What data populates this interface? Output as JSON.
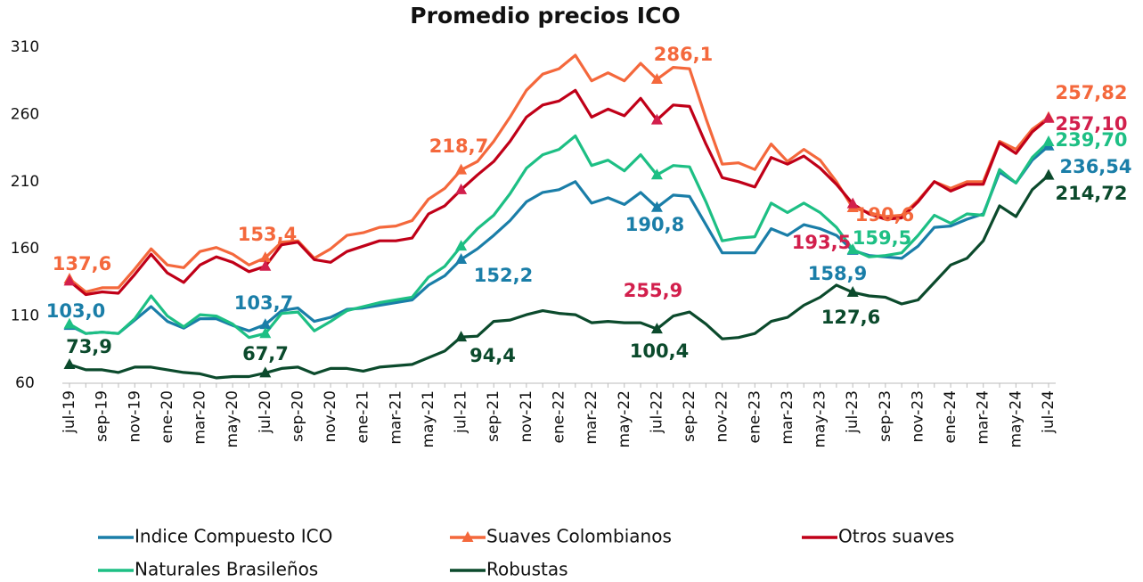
{
  "chart_data": {
    "type": "line",
    "title": "Promedio precios ICO",
    "categories": [
      "jul-19",
      null,
      "sep-19",
      null,
      "nov-19",
      null,
      "ene-20",
      null,
      "mar-20",
      null,
      "may-20",
      null,
      "jul-20",
      null,
      "sep-20",
      null,
      "nov-20",
      null,
      "ene-21",
      null,
      "mar-21",
      null,
      "may-21",
      null,
      "jul-21",
      null,
      "sep-21",
      null,
      "nov-21",
      null,
      "ene-22",
      null,
      "mar-22",
      null,
      "may-22",
      null,
      "jul-22",
      null,
      "sep-22",
      null,
      "nov-22",
      null,
      "ene-23",
      null,
      "mar-23",
      null,
      "may-23",
      null,
      "jul-23",
      null,
      "sep-23",
      null,
      "nov-23",
      null,
      "ene-24",
      null,
      "mar-24",
      null,
      "may-24",
      null,
      "jul-24"
    ],
    "ylim": [
      60,
      310
    ],
    "yticks": [
      60,
      110,
      160,
      210,
      260,
      310
    ],
    "grid": false,
    "legend": "bottom",
    "series": [
      {
        "name": "Indice Compuesto ICO",
        "color": "#1a7ea8",
        "values": [
          103.0,
          97,
          98,
          97,
          107,
          117,
          106,
          101,
          108,
          108,
          103,
          99,
          103.7,
          114,
          116,
          106,
          109,
          115,
          116,
          118,
          120,
          122,
          133,
          140,
          152.2,
          160,
          170,
          181,
          195,
          202,
          204,
          210,
          194,
          198,
          193,
          202,
          190.8,
          200,
          199,
          178,
          157,
          157,
          157,
          175,
          170,
          178,
          175,
          170,
          158.9,
          155,
          154,
          153,
          162,
          176,
          177,
          182,
          186,
          217,
          209,
          226,
          236.54
        ],
        "value_labels": [
          "103,0",
          null,
          null,
          null,
          null,
          null,
          null,
          null,
          null,
          null,
          null,
          null,
          "103,7",
          null,
          null,
          null,
          null,
          null,
          null,
          null,
          null,
          null,
          null,
          null,
          "152,2",
          null,
          null,
          null,
          null,
          null,
          null,
          null,
          null,
          null,
          null,
          null,
          "190,8",
          null,
          null,
          null,
          null,
          null,
          null,
          null,
          null,
          null,
          null,
          null,
          "158,9",
          null,
          null,
          null,
          null,
          null,
          null,
          null,
          null,
          null,
          null,
          null,
          "236,54"
        ]
      },
      {
        "name": "Suaves Colombianos",
        "color": "#f4683c",
        "values": [
          137.6,
          128,
          131,
          131,
          145,
          160,
          148,
          146,
          158,
          161,
          156,
          148,
          153.4,
          165,
          166,
          153,
          160,
          170,
          172,
          176,
          177,
          181,
          197,
          205,
          218.7,
          225,
          240,
          258,
          278,
          290,
          294,
          304,
          285,
          291,
          285,
          298,
          286.1,
          295,
          294,
          257,
          223,
          224,
          219,
          238,
          225,
          234,
          226,
          210,
          190.6,
          187,
          184,
          185,
          196,
          210,
          205,
          210,
          210,
          240,
          234,
          249,
          257.82
        ],
        "value_labels": [
          "137,6",
          null,
          null,
          null,
          null,
          null,
          null,
          null,
          null,
          null,
          null,
          null,
          "153,4",
          null,
          null,
          null,
          null,
          null,
          null,
          null,
          null,
          null,
          null,
          null,
          "218,7",
          null,
          null,
          null,
          null,
          null,
          null,
          null,
          null,
          null,
          null,
          null,
          "286,1",
          null,
          null,
          null,
          null,
          null,
          null,
          null,
          null,
          null,
          null,
          null,
          "190,6",
          null,
          null,
          null,
          null,
          null,
          null,
          null,
          null,
          null,
          null,
          null,
          "257,82"
        ]
      },
      {
        "name": "Otros suaves",
        "color": "#c00018",
        "values": [
          136,
          126,
          128,
          127,
          141,
          156,
          142,
          135,
          148,
          154,
          150,
          143,
          147,
          163,
          165,
          152,
          150,
          158,
          162,
          166,
          166,
          168,
          186,
          192,
          204,
          215,
          225,
          240,
          258,
          267,
          270,
          278,
          258,
          264,
          259,
          272,
          255.9,
          267,
          266,
          238,
          213,
          210,
          206,
          228,
          223,
          229,
          220,
          208,
          193.5,
          186,
          182,
          183,
          195,
          210,
          203,
          208,
          208,
          239,
          231,
          247,
          257.1
        ],
        "value_labels": [
          null,
          null,
          null,
          null,
          null,
          null,
          null,
          null,
          null,
          null,
          null,
          null,
          null,
          null,
          null,
          null,
          null,
          null,
          null,
          null,
          null,
          null,
          null,
          null,
          null,
          null,
          null,
          null,
          null,
          null,
          null,
          null,
          null,
          null,
          null,
          null,
          "255,9",
          null,
          null,
          null,
          null,
          null,
          null,
          null,
          null,
          null,
          null,
          null,
          "193,5",
          null,
          null,
          null,
          null,
          null,
          null,
          null,
          null,
          null,
          null,
          null,
          "257,10"
        ]
      },
      {
        "name": "Naturales Brasileños",
        "color": "#1dbf84",
        "values": [
          104,
          97,
          98,
          97,
          108,
          125,
          110,
          102,
          111,
          110,
          104,
          94,
          97,
          112,
          113,
          99,
          106,
          114,
          117,
          120,
          122,
          124,
          139,
          147,
          162,
          175,
          185,
          201,
          220,
          230,
          234,
          244,
          222,
          226,
          218,
          230,
          215,
          222,
          221,
          195,
          166,
          168,
          169,
          194,
          187,
          194,
          187,
          176,
          159.5,
          154,
          155,
          157,
          170,
          185,
          179,
          186,
          185,
          219,
          209,
          228,
          239.7
        ],
        "value_labels": [
          null,
          null,
          null,
          null,
          null,
          null,
          null,
          null,
          null,
          null,
          null,
          null,
          null,
          null,
          null,
          null,
          null,
          null,
          null,
          null,
          null,
          null,
          null,
          null,
          null,
          null,
          null,
          null,
          null,
          null,
          null,
          null,
          null,
          null,
          null,
          null,
          null,
          null,
          null,
          null,
          null,
          null,
          null,
          null,
          null,
          null,
          null,
          null,
          "159,5",
          null,
          null,
          null,
          null,
          null,
          null,
          null,
          null,
          null,
          null,
          null,
          "239,70"
        ]
      },
      {
        "name": "Robustas",
        "color": "#0b4a2c",
        "values": [
          73.9,
          70,
          70,
          68,
          72,
          72,
          70,
          68,
          67,
          64,
          65,
          65,
          67.7,
          71,
          72,
          67,
          71,
          71,
          69,
          72,
          73,
          74,
          79,
          84,
          94.4,
          95,
          106,
          107,
          111,
          114,
          112,
          111,
          105,
          106,
          105,
          105,
          100.4,
          110,
          113,
          104,
          93,
          94,
          97,
          106,
          109,
          118,
          124,
          133,
          127.6,
          125,
          124,
          119,
          122,
          135,
          148,
          153,
          166,
          192,
          184,
          204,
          214.72
        ],
        "value_labels": [
          "73,9",
          null,
          null,
          null,
          null,
          null,
          null,
          null,
          null,
          null,
          null,
          null,
          "67,7",
          null,
          null,
          null,
          null,
          null,
          null,
          null,
          null,
          null,
          null,
          null,
          "94,4",
          null,
          null,
          null,
          null,
          null,
          null,
          null,
          null,
          null,
          null,
          null,
          "100,4",
          null,
          null,
          null,
          null,
          null,
          null,
          null,
          null,
          null,
          null,
          null,
          "127,6",
          null,
          null,
          null,
          null,
          null,
          null,
          null,
          null,
          null,
          null,
          null,
          "214,72"
        ]
      }
    ]
  }
}
